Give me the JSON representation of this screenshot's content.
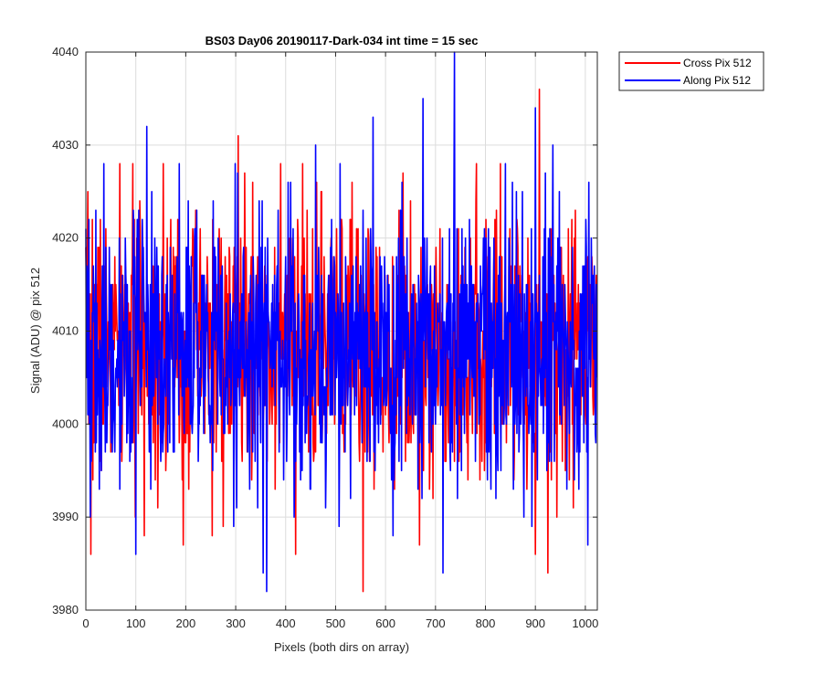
{
  "chart_data": {
    "type": "line",
    "title": "BS03 Day06 20190117-Dark-034 int time = 15 sec",
    "xlabel": "Pixels (both dirs on array)",
    "ylabel": "Signal (ADU) @ pix 512",
    "xlim": [
      0,
      1024
    ],
    "ylim": [
      3980,
      4040
    ],
    "xticks": [
      0,
      100,
      200,
      300,
      400,
      500,
      600,
      700,
      800,
      900,
      1000
    ],
    "yticks": [
      3980,
      3990,
      4000,
      4010,
      4020,
      4030,
      4040
    ],
    "grid": true,
    "legend_position": "outside-top-right",
    "series": [
      {
        "name": "Cross Pix 512",
        "color": "#ff0000",
        "noise_seed": 7,
        "mean": 4008.5,
        "spread": 7.2,
        "notable_points": [
          [
            10,
            3986
          ],
          [
            155,
            4028
          ],
          [
            195,
            3987
          ],
          [
            305,
            4031
          ],
          [
            420,
            3986
          ],
          [
            555,
            3982
          ],
          [
            710,
            4004
          ],
          [
            770,
            4020
          ],
          [
            830,
            4028
          ],
          [
            900,
            3986
          ],
          [
            908,
            4036
          ],
          [
            925,
            3984
          ],
          [
            960,
            3995
          ]
        ]
      },
      {
        "name": "Along Pix 512",
        "color": "#0000ff",
        "noise_seed": 19,
        "mean": 4008.0,
        "spread": 7.6,
        "notable_points": [
          [
            100,
            3986
          ],
          [
            122,
            4032
          ],
          [
            355,
            3984
          ],
          [
            362,
            3982
          ],
          [
            460,
            4030
          ],
          [
            575,
            4033
          ],
          [
            675,
            4035
          ],
          [
            715,
            3984
          ],
          [
            738,
            4040
          ],
          [
            900,
            4034
          ],
          [
            935,
            4030
          ],
          [
            1005,
            3987
          ]
        ]
      }
    ]
  }
}
